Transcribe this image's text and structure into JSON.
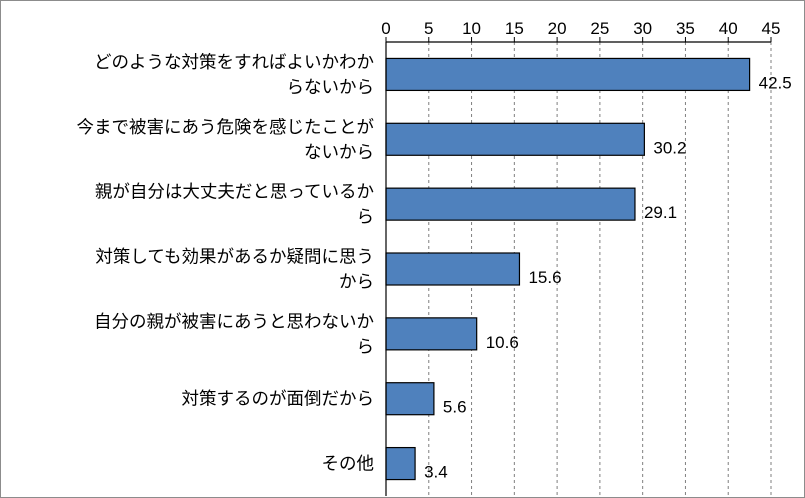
{
  "chart_data": {
    "type": "bar",
    "orientation": "horizontal",
    "title": "",
    "xlabel": "",
    "ylabel": "",
    "xlim": [
      0,
      45
    ],
    "x_ticks": [
      0,
      5,
      10,
      15,
      20,
      25,
      30,
      35,
      40,
      45
    ],
    "x_axis_position": "top",
    "grid": "vertical-dashed",
    "legend": "none",
    "bar_color": "#4f81bd",
    "bar_edge_color": "#000000",
    "categories": [
      [
        "どのような対策をすればよいかわか",
        "らないから"
      ],
      [
        "今まで被害にあう危険を感じたことが",
        "ないから"
      ],
      [
        "親が自分は大丈夫だと思っているか",
        "ら"
      ],
      [
        "対策しても効果があるか疑問に思う",
        "から"
      ],
      [
        "自分の親が被害にあうと思わないか",
        "ら"
      ],
      [
        "対策するのが面倒だから"
      ],
      [
        "その他"
      ]
    ],
    "values": [
      42.5,
      30.2,
      29.1,
      15.6,
      10.6,
      5.6,
      3.4
    ],
    "value_labels": [
      "42.5",
      "30.2",
      "29.1",
      "15.6",
      "10.6",
      "5.6",
      "3.4"
    ]
  }
}
